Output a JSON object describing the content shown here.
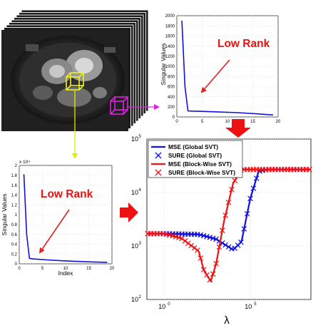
{
  "figure": {
    "mri": {
      "frame_count": 9
    },
    "plot_top": {
      "ylabel": "Singular Values",
      "annotation": "Low Rank",
      "y_ticks": [
        "0",
        "200",
        "400",
        "600",
        "800",
        "1000",
        "1200",
        "1400",
        "1600",
        "1800",
        "2000"
      ],
      "x_ticks": [
        "0",
        "5",
        "10",
        "15",
        "20"
      ],
      "values": [
        [
          1,
          1900
        ],
        [
          1.6,
          600
        ],
        [
          2.2,
          120
        ],
        [
          3,
          115
        ],
        [
          5,
          110
        ],
        [
          8,
          100
        ],
        [
          12,
          85
        ],
        [
          16,
          60
        ],
        [
          19,
          40
        ]
      ]
    },
    "plot_left": {
      "ylabel": "Singular Values",
      "xlabel": "Index",
      "exponent": "x 10⁴",
      "annotation": "Low Rank",
      "y_ticks": [
        "0",
        "0.2",
        "0.4",
        "0.6",
        "0.8",
        "1",
        "1.2",
        "1.4",
        "1.6",
        "1.8",
        "2"
      ],
      "x_ticks": [
        "0",
        "5",
        "10",
        "15",
        "20"
      ],
      "values": [
        [
          1,
          1.82
        ],
        [
          1.6,
          0.6
        ],
        [
          2.2,
          0.11
        ],
        [
          3,
          0.1
        ],
        [
          6,
          0.08
        ],
        [
          10,
          0.06
        ],
        [
          15,
          0.04
        ],
        [
          19,
          0.03
        ]
      ]
    },
    "plot_main": {
      "xlabel": "λ",
      "x_ticks": [
        {
          "base": "10",
          "exp": "0"
        },
        {
          "base": "10",
          "exp": "5"
        }
      ],
      "y_ticks": [
        {
          "base": "10",
          "exp": "2"
        },
        {
          "base": "10",
          "exp": "3"
        },
        {
          "base": "10",
          "exp": "4"
        },
        {
          "base": "10",
          "exp": "5"
        }
      ],
      "legend": [
        {
          "label": "MSE (Global SVT)",
          "style": "line",
          "color": "#1010e0"
        },
        {
          "label": "SURE (Global SVT)",
          "style": "marker",
          "color": "#1010e0"
        },
        {
          "label": "MSE (Block-Wise SVT)",
          "style": "line",
          "color": "#ee1111"
        },
        {
          "label": "SURE (Block-Wise SVT)",
          "style": "marker",
          "color": "#ee1111"
        }
      ]
    }
  },
  "chart_data": [
    {
      "type": "line",
      "ylabel": "Singular Values",
      "xlim": [
        0,
        20
      ],
      "ylim": [
        0,
        2000
      ],
      "annotation": "Low Rank",
      "series": [
        {
          "x": [
            1,
            1.6,
            2.2,
            3,
            5,
            8,
            12,
            16,
            19
          ],
          "y": [
            1900,
            600,
            120,
            115,
            110,
            100,
            85,
            60,
            40
          ]
        }
      ]
    },
    {
      "type": "line",
      "ylabel": "Singular Values",
      "xlabel": "Index",
      "xlim": [
        0,
        20
      ],
      "ylim": [
        0,
        2
      ],
      "y_multiplier": "x 10⁴",
      "annotation": "Low Rank",
      "series": [
        {
          "x": [
            1,
            1.6,
            2.2,
            3,
            6,
            10,
            15,
            19
          ],
          "y": [
            1.82,
            0.6,
            0.11,
            0.1,
            0.08,
            0.06,
            0.04,
            0.03
          ]
        }
      ]
    },
    {
      "type": "line",
      "xlabel": "λ",
      "x_scale": "log",
      "y_scale": "log",
      "ylim": [
        100,
        100000
      ],
      "legend_position": "top-left",
      "series": [
        {
          "name": "MSE (Global SVT)",
          "color": "#1010e0",
          "x": [
            0.01,
            1,
            100,
            1000,
            10000,
            30000,
            100000,
            300000,
            1000000,
            100000000
          ],
          "y": [
            1700,
            1700,
            1650,
            1350,
            850,
            1200,
            8000,
            25000,
            27000,
            27000
          ]
        },
        {
          "name": "SURE (Global SVT)",
          "color": "#1010e0",
          "x": [
            0.01,
            1,
            100,
            1000,
            10000,
            30000,
            100000,
            300000,
            1000000,
            100000000
          ],
          "y": [
            1700,
            1700,
            1650,
            1350,
            850,
            1200,
            8000,
            25000,
            27000,
            27000
          ]
        },
        {
          "name": "MSE (Block-Wise SVT)",
          "color": "#ee1111",
          "x": [
            0.01,
            1,
            10,
            100,
            200,
            500,
            1000,
            3000,
            10000,
            30000,
            100000000
          ],
          "y": [
            1700,
            1700,
            1400,
            800,
            350,
            220,
            450,
            3000,
            15000,
            27000,
            27000
          ]
        },
        {
          "name": "SURE (Block-Wise SVT)",
          "color": "#ee1111",
          "x": [
            0.01,
            1,
            10,
            100,
            200,
            500,
            1000,
            3000,
            10000,
            30000,
            100000000
          ],
          "y": [
            1700,
            1700,
            1400,
            800,
            350,
            220,
            450,
            3000,
            15000,
            27000,
            27000
          ]
        }
      ]
    }
  ]
}
